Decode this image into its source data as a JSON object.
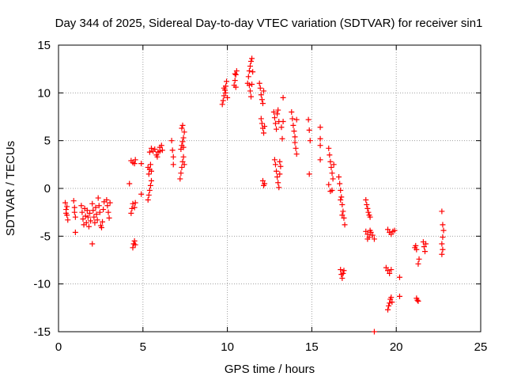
{
  "chart_data": {
    "type": "scatter",
    "title": "Day 344 of 2025, Sidereal Day-to-day VTEC variation (SDTVAR) for receiver sin1",
    "xlabel": "GPS time / hours",
    "ylabel": "SDTVAR / TECUs",
    "xlim": [
      0,
      25
    ],
    "ylim": [
      -15,
      15
    ],
    "xticks": [
      0,
      5,
      10,
      15,
      20,
      25
    ],
    "yticks": [
      -15,
      -10,
      -5,
      0,
      5,
      10,
      15
    ],
    "grid": true,
    "marker": "+",
    "color": "#ff0000",
    "series": [
      {
        "name": "SDTVAR",
        "points": [
          [
            0.4,
            -1.5
          ],
          [
            0.45,
            -2.2
          ],
          [
            0.5,
            -2.8
          ],
          [
            0.55,
            -3.3
          ],
          [
            0.5,
            -1.9
          ],
          [
            0.45,
            -2.6
          ],
          [
            0.9,
            -1.3
          ],
          [
            0.95,
            -2.5
          ],
          [
            1.0,
            -3.0
          ],
          [
            1.0,
            -4.6
          ],
          [
            0.95,
            -2.0
          ],
          [
            1.35,
            -1.8
          ],
          [
            1.4,
            -2.5
          ],
          [
            1.45,
            -3.2
          ],
          [
            1.5,
            -3.8
          ],
          [
            1.55,
            -2.1
          ],
          [
            1.6,
            -2.9
          ],
          [
            1.65,
            -3.6
          ],
          [
            1.7,
            -2.3
          ],
          [
            1.75,
            -3.0
          ],
          [
            1.8,
            -4.0
          ],
          [
            1.85,
            -2.6
          ],
          [
            1.9,
            -3.4
          ],
          [
            2.0,
            -5.8
          ],
          [
            2.0,
            -1.6
          ],
          [
            2.05,
            -2.3
          ],
          [
            2.1,
            -3.0
          ],
          [
            2.15,
            -3.6
          ],
          [
            2.2,
            -2.0
          ],
          [
            2.25,
            -2.7
          ],
          [
            2.3,
            -3.3
          ],
          [
            2.35,
            -1.0
          ],
          [
            2.4,
            -1.8
          ],
          [
            2.45,
            -2.5
          ],
          [
            2.5,
            -3.9
          ],
          [
            2.55,
            -4.1
          ],
          [
            2.6,
            -3.5
          ],
          [
            2.65,
            -2.2
          ],
          [
            2.7,
            -1.4
          ],
          [
            2.85,
            -1.2
          ],
          [
            2.9,
            -1.8
          ],
          [
            2.95,
            -2.5
          ],
          [
            3.0,
            -3.1
          ],
          [
            3.05,
            -1.5
          ],
          [
            4.2,
            0.5
          ],
          [
            4.3,
            -2.6
          ],
          [
            4.35,
            -2.1
          ],
          [
            4.4,
            -1.6
          ],
          [
            4.3,
            2.9
          ],
          [
            4.4,
            2.7
          ],
          [
            4.5,
            2.6
          ],
          [
            4.55,
            3.0
          ],
          [
            4.4,
            -6.2
          ],
          [
            4.45,
            -5.8
          ],
          [
            4.5,
            -5.5
          ],
          [
            4.55,
            -5.9
          ],
          [
            4.5,
            -2.0
          ],
          [
            4.55,
            -1.5
          ],
          [
            4.9,
            -0.6
          ],
          [
            4.9,
            2.6
          ],
          [
            5.3,
            -1.2
          ],
          [
            5.35,
            -0.7
          ],
          [
            5.4,
            -0.2
          ],
          [
            5.45,
            0.3
          ],
          [
            5.5,
            0.8
          ],
          [
            5.35,
            1.5
          ],
          [
            5.4,
            2.0
          ],
          [
            5.45,
            2.5
          ],
          [
            5.5,
            1.8
          ],
          [
            5.3,
            2.2
          ],
          [
            5.4,
            3.8
          ],
          [
            5.5,
            4.2
          ],
          [
            5.6,
            3.9
          ],
          [
            5.7,
            4.1
          ],
          [
            5.8,
            3.5
          ],
          [
            5.9,
            3.8
          ],
          [
            6.0,
            4.3
          ],
          [
            6.1,
            4.5
          ],
          [
            6.0,
            3.9
          ],
          [
            5.85,
            3.3
          ],
          [
            6.15,
            4.0
          ],
          [
            6.7,
            5.0
          ],
          [
            6.75,
            4.0
          ],
          [
            6.8,
            3.3
          ],
          [
            6.8,
            2.5
          ],
          [
            7.2,
            1.0
          ],
          [
            7.25,
            1.6
          ],
          [
            7.3,
            2.2
          ],
          [
            7.35,
            2.8
          ],
          [
            7.4,
            3.3
          ],
          [
            7.25,
            4.1
          ],
          [
            7.3,
            4.5
          ],
          [
            7.35,
            4.9
          ],
          [
            7.4,
            5.3
          ],
          [
            7.45,
            5.9
          ],
          [
            7.3,
            6.3
          ],
          [
            7.35,
            6.6
          ],
          [
            7.4,
            4.3
          ],
          [
            7.45,
            2.5
          ],
          [
            9.7,
            8.8
          ],
          [
            9.75,
            9.2
          ],
          [
            9.8,
            9.7
          ],
          [
            9.85,
            10.3
          ],
          [
            9.9,
            10.7
          ],
          [
            9.95,
            11.2
          ],
          [
            9.8,
            10.5
          ],
          [
            9.9,
            10.0
          ],
          [
            10.0,
            9.5
          ],
          [
            10.4,
            10.8
          ],
          [
            10.45,
            11.3
          ],
          [
            10.5,
            11.9
          ],
          [
            10.55,
            12.3
          ],
          [
            10.5,
            10.6
          ],
          [
            10.45,
            12.0
          ],
          [
            11.2,
            11.0
          ],
          [
            11.25,
            11.7
          ],
          [
            11.3,
            12.3
          ],
          [
            11.35,
            12.8
          ],
          [
            11.4,
            13.3
          ],
          [
            11.45,
            13.6
          ],
          [
            11.5,
            12.2
          ],
          [
            11.3,
            10.8
          ],
          [
            11.35,
            10.2
          ],
          [
            11.4,
            9.6
          ],
          [
            11.45,
            10.9
          ],
          [
            11.9,
            11.0
          ],
          [
            11.95,
            10.5
          ],
          [
            12.0,
            9.8
          ],
          [
            12.05,
            9.3
          ],
          [
            12.1,
            8.9
          ],
          [
            12.15,
            10.2
          ],
          [
            12.0,
            7.3
          ],
          [
            12.05,
            6.8
          ],
          [
            12.1,
            6.3
          ],
          [
            12.15,
            5.8
          ],
          [
            12.2,
            6.5
          ],
          [
            12.1,
            0.8
          ],
          [
            12.15,
            0.3
          ],
          [
            12.2,
            0.5
          ],
          [
            12.75,
            8.0
          ],
          [
            12.8,
            7.4
          ],
          [
            12.85,
            6.8
          ],
          [
            12.9,
            6.2
          ],
          [
            12.95,
            7.8
          ],
          [
            13.0,
            8.2
          ],
          [
            13.05,
            7.0
          ],
          [
            12.8,
            3.0
          ],
          [
            12.85,
            2.5
          ],
          [
            12.9,
            1.8
          ],
          [
            12.95,
            1.2
          ],
          [
            13.0,
            0.6
          ],
          [
            13.05,
            0.1
          ],
          [
            13.1,
            1.5
          ],
          [
            13.15,
            2.3
          ],
          [
            13.1,
            2.8
          ],
          [
            13.3,
            9.5
          ],
          [
            13.3,
            7.0
          ],
          [
            13.25,
            5.2
          ],
          [
            13.2,
            6.4
          ],
          [
            13.8,
            8.0
          ],
          [
            13.85,
            7.3
          ],
          [
            13.9,
            6.6
          ],
          [
            13.95,
            6.0
          ],
          [
            14.0,
            4.8
          ],
          [
            14.05,
            4.2
          ],
          [
            14.1,
            3.6
          ],
          [
            14.0,
            5.4
          ],
          [
            14.1,
            7.2
          ],
          [
            14.8,
            7.2
          ],
          [
            14.85,
            6.1
          ],
          [
            14.9,
            5.0
          ],
          [
            14.85,
            1.5
          ],
          [
            15.5,
            6.4
          ],
          [
            15.5,
            5.2
          ],
          [
            15.5,
            4.5
          ],
          [
            15.5,
            3.0
          ],
          [
            16.0,
            4.2
          ],
          [
            16.05,
            3.5
          ],
          [
            16.1,
            2.8
          ],
          [
            16.15,
            2.2
          ],
          [
            16.2,
            1.6
          ],
          [
            16.25,
            1.0
          ],
          [
            16.3,
            2.5
          ],
          [
            16.0,
            0.4
          ],
          [
            16.1,
            -0.3
          ],
          [
            16.2,
            -0.2
          ],
          [
            16.6,
            1.2
          ],
          [
            16.65,
            0.5
          ],
          [
            16.7,
            -0.2
          ],
          [
            16.75,
            -0.9
          ],
          [
            16.8,
            -1.7
          ],
          [
            16.85,
            -2.4
          ],
          [
            16.9,
            -3.1
          ],
          [
            16.95,
            -3.8
          ],
          [
            16.8,
            -2.8
          ],
          [
            16.7,
            -1.2
          ],
          [
            16.7,
            -8.5
          ],
          [
            16.75,
            -9.0
          ],
          [
            16.8,
            -9.4
          ],
          [
            16.85,
            -8.9
          ],
          [
            16.9,
            -8.6
          ],
          [
            18.2,
            -1.2
          ],
          [
            18.25,
            -1.7
          ],
          [
            18.3,
            -2.1
          ],
          [
            18.35,
            -2.5
          ],
          [
            18.4,
            -2.8
          ],
          [
            18.45,
            -3.0
          ],
          [
            18.2,
            -4.5
          ],
          [
            18.3,
            -4.8
          ],
          [
            18.4,
            -5.1
          ],
          [
            18.5,
            -4.6
          ],
          [
            18.6,
            -4.9
          ],
          [
            18.7,
            -5.3
          ],
          [
            18.3,
            -5.3
          ],
          [
            18.45,
            -4.4
          ],
          [
            18.7,
            -15.0
          ],
          [
            19.5,
            -4.3
          ],
          [
            19.6,
            -4.6
          ],
          [
            19.7,
            -4.8
          ],
          [
            19.8,
            -4.5
          ],
          [
            19.9,
            -4.4
          ],
          [
            19.4,
            -8.3
          ],
          [
            19.5,
            -8.6
          ],
          [
            19.6,
            -8.9
          ],
          [
            19.7,
            -8.5
          ],
          [
            19.5,
            -12.7
          ],
          [
            19.55,
            -12.3
          ],
          [
            19.6,
            -12.0
          ],
          [
            19.65,
            -11.6
          ],
          [
            19.7,
            -11.4
          ],
          [
            19.75,
            -11.9
          ],
          [
            20.2,
            -9.3
          ],
          [
            20.2,
            -11.3
          ],
          [
            21.1,
            -6.2
          ],
          [
            21.15,
            -6.0
          ],
          [
            21.2,
            -6.4
          ],
          [
            21.3,
            -7.9
          ],
          [
            21.35,
            -7.4
          ],
          [
            21.2,
            -11.5
          ],
          [
            21.3,
            -11.8
          ],
          [
            21.25,
            -11.7
          ],
          [
            21.6,
            -5.6
          ],
          [
            21.65,
            -6.1
          ],
          [
            21.7,
            -6.6
          ],
          [
            21.75,
            -5.8
          ],
          [
            22.7,
            -2.4
          ],
          [
            22.75,
            -3.8
          ],
          [
            22.8,
            -4.4
          ],
          [
            22.75,
            -5.1
          ],
          [
            22.7,
            -5.8
          ],
          [
            22.75,
            -6.4
          ],
          [
            22.7,
            -6.9
          ]
        ]
      }
    ]
  }
}
